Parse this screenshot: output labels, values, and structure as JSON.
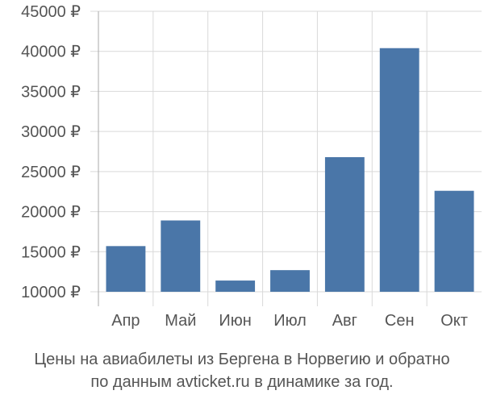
{
  "chart_data": {
    "type": "bar",
    "title": "",
    "xlabel": "",
    "ylabel": "",
    "categories": [
      "Апр",
      "Май",
      "Июн",
      "Июл",
      "Авг",
      "Сен",
      "Окт"
    ],
    "values": [
      15700,
      18900,
      11400,
      12700,
      26800,
      40400,
      22600
    ],
    "ylim": [
      10000,
      45000
    ],
    "yticks": [
      10000,
      15000,
      20000,
      25000,
      30000,
      35000,
      40000,
      45000
    ],
    "ytick_labels": [
      "10000 ₽",
      "15000 ₽",
      "20000 ₽",
      "25000 ₽",
      "30000 ₽",
      "35000 ₽",
      "40000 ₽",
      "45000 ₽"
    ],
    "grid": true,
    "bar_color": "#4a76a8",
    "grid_color": "#d9d9d9",
    "axis_color": "#aaaaaa",
    "text_color": "#555555"
  },
  "caption": {
    "line1": "Цены на авиабилеты из Бергена в Норвегию и обратно",
    "line2": "по данным avticket.ru в динамике за год."
  }
}
